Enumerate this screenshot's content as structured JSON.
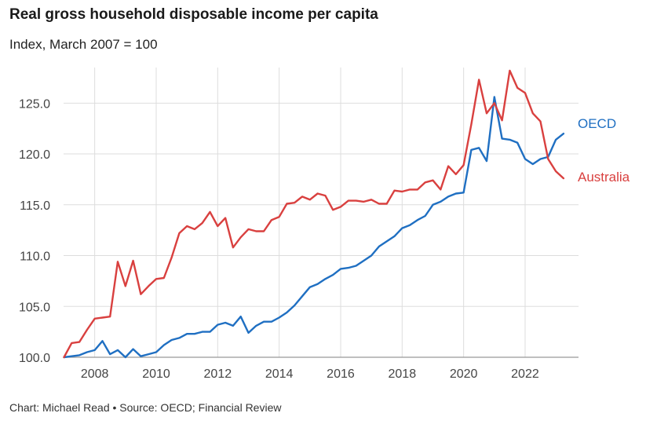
{
  "header": {
    "title": "Real gross household disposable income per capita",
    "subtitle": "Index, March 2007 = 100"
  },
  "footer": {
    "credit": "Chart: Michael Read • Source: OECD; Financial Review"
  },
  "colors": {
    "australia": "#d9403f",
    "oecd": "#1f6fc2",
    "grid": "#dddddd",
    "axis": "#999999"
  },
  "chart_data": {
    "type": "line",
    "title": "Real gross household disposable income per capita",
    "subtitle": "Index, March 2007 = 100",
    "xlabel": "",
    "ylabel": "",
    "xlim": [
      2007.0,
      2023.75
    ],
    "ylim": [
      100,
      128.5
    ],
    "xticks": [
      2008,
      2010,
      2012,
      2014,
      2016,
      2018,
      2020,
      2022
    ],
    "yticks": [
      100.0,
      105.0,
      110.0,
      115.0,
      120.0,
      125.0
    ],
    "ytick_labels": [
      "100.0",
      "105.0",
      "110.0",
      "115.0",
      "120.0",
      "125.0"
    ],
    "grid": "vertical and horizontal",
    "legend": "direct labels at line ends",
    "series": [
      {
        "name": "OECD",
        "points": [
          [
            2007.0,
            100.0
          ],
          [
            2007.25,
            100.1
          ],
          [
            2007.5,
            100.2
          ],
          [
            2007.75,
            100.5
          ],
          [
            2008.0,
            100.7
          ],
          [
            2008.25,
            101.6
          ],
          [
            2008.5,
            100.3
          ],
          [
            2008.75,
            100.7
          ],
          [
            2009.0,
            100.0
          ],
          [
            2009.25,
            100.8
          ],
          [
            2009.5,
            100.1
          ],
          [
            2009.75,
            100.3
          ],
          [
            2010.0,
            100.5
          ],
          [
            2010.25,
            101.2
          ],
          [
            2010.5,
            101.7
          ],
          [
            2010.75,
            101.9
          ],
          [
            2011.0,
            102.3
          ],
          [
            2011.25,
            102.3
          ],
          [
            2011.5,
            102.5
          ],
          [
            2011.75,
            102.5
          ],
          [
            2012.0,
            103.2
          ],
          [
            2012.25,
            103.4
          ],
          [
            2012.5,
            103.1
          ],
          [
            2012.75,
            104.0
          ],
          [
            2013.0,
            102.4
          ],
          [
            2013.25,
            103.1
          ],
          [
            2013.5,
            103.5
          ],
          [
            2013.75,
            103.5
          ],
          [
            2014.0,
            103.9
          ],
          [
            2014.25,
            104.4
          ],
          [
            2014.5,
            105.1
          ],
          [
            2014.75,
            106.0
          ],
          [
            2015.0,
            106.9
          ],
          [
            2015.25,
            107.2
          ],
          [
            2015.5,
            107.7
          ],
          [
            2015.75,
            108.1
          ],
          [
            2016.0,
            108.7
          ],
          [
            2016.25,
            108.8
          ],
          [
            2016.5,
            109.0
          ],
          [
            2016.75,
            109.5
          ],
          [
            2017.0,
            110.0
          ],
          [
            2017.25,
            110.9
          ],
          [
            2017.5,
            111.4
          ],
          [
            2017.75,
            111.9
          ],
          [
            2018.0,
            112.7
          ],
          [
            2018.25,
            113.0
          ],
          [
            2018.5,
            113.5
          ],
          [
            2018.75,
            113.9
          ],
          [
            2019.0,
            115.0
          ],
          [
            2019.25,
            115.3
          ],
          [
            2019.5,
            115.8
          ],
          [
            2019.75,
            116.1
          ],
          [
            2020.0,
            116.2
          ],
          [
            2020.25,
            120.4
          ],
          [
            2020.5,
            120.6
          ],
          [
            2020.75,
            119.3
          ],
          [
            2021.0,
            125.6
          ],
          [
            2021.25,
            121.5
          ],
          [
            2021.5,
            121.4
          ],
          [
            2021.75,
            121.1
          ],
          [
            2022.0,
            119.5
          ],
          [
            2022.25,
            119.0
          ],
          [
            2022.5,
            119.5
          ],
          [
            2022.75,
            119.7
          ],
          [
            2023.0,
            121.4
          ],
          [
            2023.25,
            122.0
          ]
        ]
      },
      {
        "name": "Australia",
        "points": [
          [
            2007.0,
            100.0
          ],
          [
            2007.25,
            101.4
          ],
          [
            2007.5,
            101.5
          ],
          [
            2007.75,
            102.7
          ],
          [
            2008.0,
            103.8
          ],
          [
            2008.25,
            103.9
          ],
          [
            2008.5,
            104.0
          ],
          [
            2008.75,
            109.4
          ],
          [
            2009.0,
            107.0
          ],
          [
            2009.25,
            109.5
          ],
          [
            2009.5,
            106.2
          ],
          [
            2009.75,
            107.0
          ],
          [
            2010.0,
            107.7
          ],
          [
            2010.25,
            107.8
          ],
          [
            2010.5,
            109.8
          ],
          [
            2010.75,
            112.2
          ],
          [
            2011.0,
            112.9
          ],
          [
            2011.25,
            112.6
          ],
          [
            2011.5,
            113.2
          ],
          [
            2011.75,
            114.3
          ],
          [
            2012.0,
            112.9
          ],
          [
            2012.25,
            113.7
          ],
          [
            2012.5,
            110.8
          ],
          [
            2012.75,
            111.8
          ],
          [
            2013.0,
            112.6
          ],
          [
            2013.25,
            112.4
          ],
          [
            2013.5,
            112.4
          ],
          [
            2013.75,
            113.5
          ],
          [
            2014.0,
            113.8
          ],
          [
            2014.25,
            115.1
          ],
          [
            2014.5,
            115.2
          ],
          [
            2014.75,
            115.8
          ],
          [
            2015.0,
            115.5
          ],
          [
            2015.25,
            116.1
          ],
          [
            2015.5,
            115.9
          ],
          [
            2015.75,
            114.5
          ],
          [
            2016.0,
            114.8
          ],
          [
            2016.25,
            115.4
          ],
          [
            2016.5,
            115.4
          ],
          [
            2016.75,
            115.3
          ],
          [
            2017.0,
            115.5
          ],
          [
            2017.25,
            115.1
          ],
          [
            2017.5,
            115.1
          ],
          [
            2017.75,
            116.4
          ],
          [
            2018.0,
            116.3
          ],
          [
            2018.25,
            116.5
          ],
          [
            2018.5,
            116.5
          ],
          [
            2018.75,
            117.2
          ],
          [
            2019.0,
            117.4
          ],
          [
            2019.25,
            116.5
          ],
          [
            2019.5,
            118.8
          ],
          [
            2019.75,
            118.0
          ],
          [
            2020.0,
            118.9
          ],
          [
            2020.25,
            122.9
          ],
          [
            2020.5,
            127.3
          ],
          [
            2020.75,
            124.0
          ],
          [
            2021.0,
            125.0
          ],
          [
            2021.25,
            123.3
          ],
          [
            2021.5,
            128.2
          ],
          [
            2021.75,
            126.5
          ],
          [
            2022.0,
            126.0
          ],
          [
            2022.25,
            124.0
          ],
          [
            2022.5,
            123.2
          ],
          [
            2022.75,
            119.5
          ],
          [
            2023.0,
            118.3
          ],
          [
            2023.25,
            117.6
          ]
        ]
      }
    ]
  }
}
